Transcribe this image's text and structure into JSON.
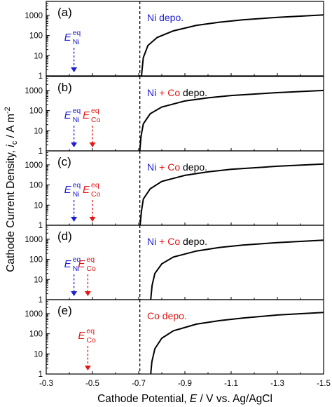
{
  "colors": {
    "ni": "#1f1fd2",
    "co": "#e01818",
    "curve": "#000000",
    "frame": "#000000"
  },
  "chart_data": {
    "type": "line",
    "xlabel": {
      "text": "Cathode Potential, ",
      "var": "E",
      "rest": " / V vs. Ag/AgCl"
    },
    "ylabel": {
      "text": "Cathode Current Density, ",
      "var": "i",
      "sub": "c",
      "rest": " / A m",
      "sup": "-2"
    },
    "xlim": [
      -0.3,
      -1.5
    ],
    "ylim": [
      1,
      2000
    ],
    "y_scale": "log",
    "x_ticks": [
      "-0.3",
      "-0.5",
      "-0.7",
      "-0.9",
      "-1.1",
      "-1.3",
      "-1.5"
    ],
    "y_ticks": [
      "1",
      "10",
      "100",
      "1000"
    ],
    "reference_line": {
      "x": -0.705,
      "style": "dashed"
    },
    "panels": [
      {
        "label": "(a)",
        "annotation": [
          {
            "text": "Ni depo.",
            "color": "ni"
          }
        ],
        "equilibrium": [
          {
            "symbol": "E",
            "sub": "Ni",
            "sup": "eq",
            "x": -0.42,
            "color": "ni"
          }
        ],
        "series": [
          {
            "x": [
              -0.712,
              -0.72,
              -0.74,
              -0.78,
              -0.85,
              -0.95,
              -1.05,
              -1.15,
              -1.3,
              -1.5
            ],
            "y": [
              1,
              8,
              32,
              80,
              170,
              320,
              460,
              600,
              800,
              1050
            ]
          }
        ]
      },
      {
        "label": "(b)",
        "annotation": [
          {
            "text": "Ni",
            "color": "ni"
          },
          {
            "text": "+",
            "color": "co"
          },
          {
            "text": "Co",
            "color": "co"
          },
          {
            "text": "depo.",
            "color": "curve"
          }
        ],
        "equilibrium": [
          {
            "symbol": "E",
            "sub": "Ni",
            "sup": "eq",
            "x": -0.42,
            "color": "ni"
          },
          {
            "symbol": "E",
            "sub": "Co",
            "sup": "eq",
            "x": -0.5,
            "color": "co"
          }
        ],
        "series": [
          {
            "x": [
              -0.705,
              -0.71,
              -0.72,
              -0.75,
              -0.8,
              -0.9,
              -1.0,
              -1.1,
              -1.3,
              -1.5
            ],
            "y": [
              1,
              5,
              22,
              70,
              150,
              300,
              430,
              560,
              780,
              1000
            ]
          }
        ]
      },
      {
        "label": "(c)",
        "annotation": [
          {
            "text": "Ni",
            "color": "ni"
          },
          {
            "text": "+",
            "color": "co"
          },
          {
            "text": "Co",
            "color": "co"
          },
          {
            "text": "depo.",
            "color": "curve"
          }
        ],
        "equilibrium": [
          {
            "symbol": "E",
            "sub": "Ni",
            "sup": "eq",
            "x": -0.42,
            "color": "ni"
          },
          {
            "symbol": "E",
            "sub": "Co",
            "sup": "eq",
            "x": -0.5,
            "color": "co"
          }
        ],
        "series": [
          {
            "x": [
              -0.706,
              -0.712,
              -0.72,
              -0.75,
              -0.8,
              -0.9,
              -1.0,
              -1.1,
              -1.3,
              -1.5
            ],
            "y": [
              1,
              5,
              20,
              65,
              150,
              300,
              450,
              600,
              850,
              1100
            ]
          }
        ]
      },
      {
        "label": "(d)",
        "annotation": [
          {
            "text": "Ni",
            "color": "ni"
          },
          {
            "text": "+",
            "color": "co"
          },
          {
            "text": "Co",
            "color": "co"
          },
          {
            "text": "depo.",
            "color": "curve"
          }
        ],
        "equilibrium": [
          {
            "symbol": "E",
            "sub": "Ni",
            "sup": "eq",
            "x": -0.42,
            "color": "ni"
          },
          {
            "symbol": "E",
            "sub": "Co",
            "sup": "eq",
            "x": -0.48,
            "color": "co"
          }
        ],
        "series": [
          {
            "x": [
              -0.752,
              -0.758,
              -0.77,
              -0.8,
              -0.85,
              -0.95,
              -1.05,
              -1.15,
              -1.3,
              -1.5
            ],
            "y": [
              1,
              5,
              20,
              60,
              130,
              260,
              390,
              510,
              680,
              900
            ]
          }
        ]
      },
      {
        "label": "(e)",
        "annotation": [
          {
            "text": "Co depo.",
            "color": "co"
          }
        ],
        "equilibrium": [
          {
            "symbol": "E",
            "sub": "Co",
            "sup": "eq",
            "x": -0.48,
            "color": "co"
          }
        ],
        "series": [
          {
            "x": [
              -0.752,
              -0.757,
              -0.77,
              -0.8,
              -0.85,
              -0.95,
              -1.05,
              -1.15,
              -1.3,
              -1.5
            ],
            "y": [
              1,
              4,
              18,
              60,
              140,
              300,
              450,
              600,
              850,
              1150
            ]
          }
        ]
      }
    ]
  }
}
